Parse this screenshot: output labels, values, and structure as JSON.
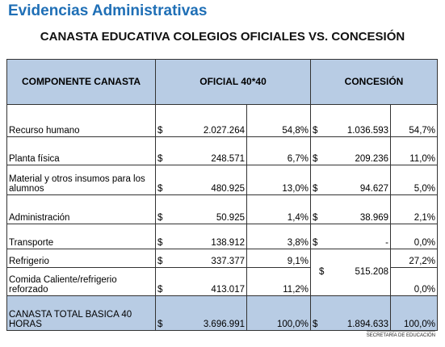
{
  "header": {
    "title": "Evidencias Administrativas",
    "subtitle": "CANASTA EDUCATIVA COLEGIOS OFICIALES VS. CONCESIÓN"
  },
  "table": {
    "columns": [
      "COMPONENTE CANASTA",
      "OFICIAL 40*40",
      "CONCESIÓN"
    ],
    "currency": "$",
    "rows": [
      [
        "Recurso humano",
        "2.027.264",
        "54,8%",
        "1.036.593",
        "54,7%"
      ],
      [
        "Planta física",
        "248.571",
        "6,7%",
        "209.236",
        "11,0%"
      ],
      [
        "Material y otros insumos para los alumnos",
        "480.925",
        "13,0%",
        "94.627",
        "5,0%"
      ],
      [
        "Administración",
        "50.925",
        "1,4%",
        "38.969",
        "2,1%"
      ],
      [
        "Transporte",
        "138.912",
        "3,8%",
        "-",
        "0,0%"
      ],
      [
        "Refrigerio",
        "337.377",
        "9,1%",
        "515.208",
        "27,2%"
      ],
      [
        "Comida Caliente/refrigerio reforzado",
        "413.017",
        "11,2%",
        null,
        "0,0%"
      ],
      [
        "CANASTA TOTAL BASICA 40 HORAS",
        "3.696.991",
        "100,0%",
        "1.894.633",
        "100,0%"
      ]
    ]
  },
  "footer": "SECRETARÍA DE EDUCACIÓN"
}
